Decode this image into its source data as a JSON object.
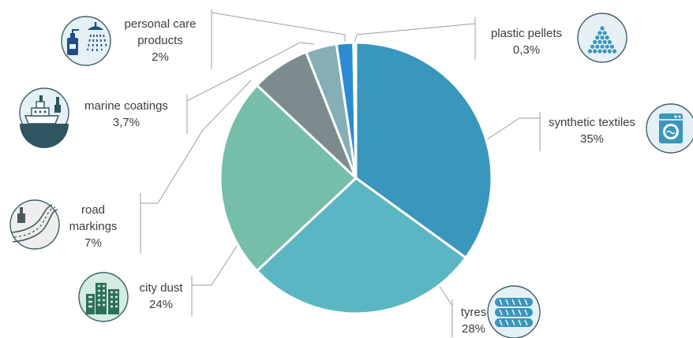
{
  "chart_data": {
    "type": "pie",
    "slices": [
      {
        "key": "synthetic_textiles",
        "lines": [
          "synthetic textiles"
        ],
        "display": "35%",
        "value": 35,
        "color": "#3996bd",
        "icon": "washing-machine-icon"
      },
      {
        "key": "tyres",
        "lines": [
          "tyres"
        ],
        "display": "28%",
        "value": 28,
        "color": "#5bb6c3",
        "icon": "tyres-icon"
      },
      {
        "key": "city_dust",
        "lines": [
          "city dust"
        ],
        "display": "24%",
        "value": 24,
        "color": "#76bea9",
        "icon": "city-buildings-icon"
      },
      {
        "key": "road_markings",
        "lines": [
          "road",
          "markings"
        ],
        "display": "7%",
        "value": 7,
        "color": "#7c8c8e",
        "icon": "road-paint-icon"
      },
      {
        "key": "marine_coatings",
        "lines": [
          "marine coatings"
        ],
        "display": "3,7%",
        "value": 3.7,
        "color": "#86aeb7",
        "icon": "ship-paint-icon"
      },
      {
        "key": "personal_care",
        "lines": [
          "personal care",
          "products"
        ],
        "display": "2%",
        "value": 2,
        "color": "#2b8bd0",
        "icon": "shower-soap-icon"
      },
      {
        "key": "plastic_pellets",
        "lines": [
          "plastic pellets"
        ],
        "display": "0,3%",
        "value": 0.3,
        "color": "#5aa6c0",
        "icon": "plastic-pellets-icon"
      }
    ]
  },
  "colors": {
    "leader_line": "#9e9e9e",
    "icon_fill_default": "#e6f1f5",
    "icon_fill_city": "#d4ece2",
    "icon_fill_road": "#eeeeee",
    "icon_stroke": "#3f5f69"
  }
}
